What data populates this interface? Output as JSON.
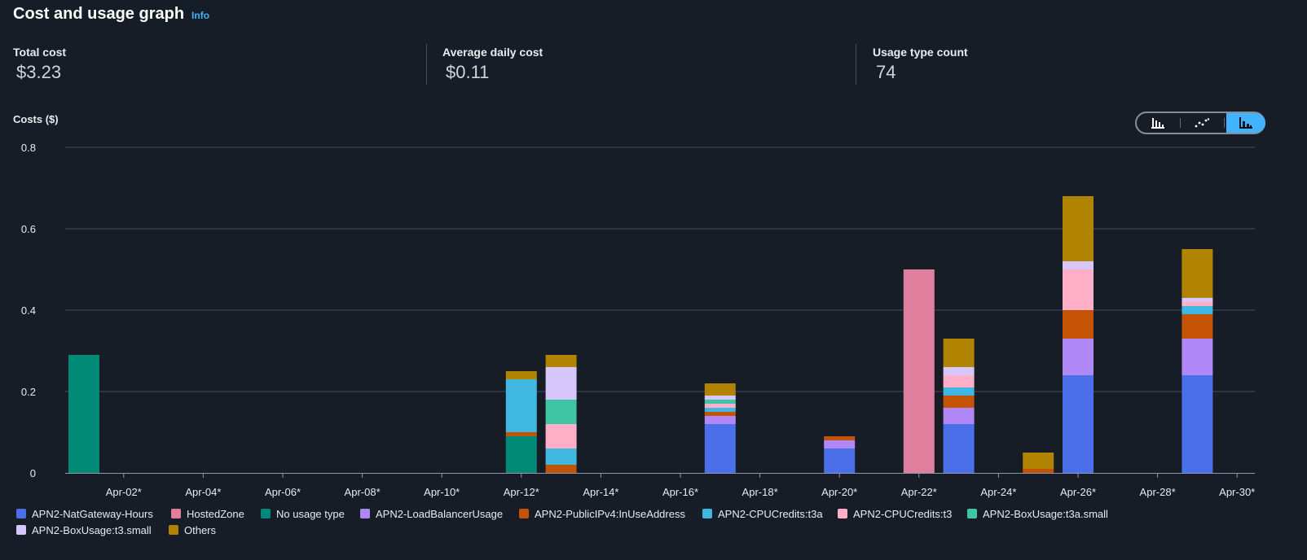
{
  "header": {
    "title": "Cost and usage graph",
    "info": "Info"
  },
  "stats": [
    {
      "label": "Total cost",
      "value": "$3.23"
    },
    {
      "label": "Average daily cost",
      "value": "$0.11"
    },
    {
      "label": "Usage type count",
      "value": "74"
    }
  ],
  "toggle": {
    "options": [
      "bar-chart-icon",
      "line-chart-icon",
      "stacked-bar-chart-icon"
    ],
    "selected": "stacked-bar-chart-icon"
  },
  "chart_data": {
    "type": "bar",
    "stacked": true,
    "ylabel": "Costs ($)",
    "ylim": [
      0,
      0.8
    ],
    "yticks": [
      "0",
      "0.2",
      "0.4",
      "0.6",
      "0.8"
    ],
    "xtick_labels": [
      "Apr-02*",
      "Apr-04*",
      "Apr-06*",
      "Apr-08*",
      "Apr-10*",
      "Apr-12*",
      "Apr-14*",
      "Apr-16*",
      "Apr-18*",
      "Apr-20*",
      "Apr-22*",
      "Apr-24*",
      "Apr-26*",
      "Apr-28*",
      "Apr-30*"
    ],
    "categories": [
      "Apr-01*",
      "Apr-02*",
      "Apr-03*",
      "Apr-04*",
      "Apr-05*",
      "Apr-06*",
      "Apr-07*",
      "Apr-08*",
      "Apr-09*",
      "Apr-10*",
      "Apr-11*",
      "Apr-12*",
      "Apr-13*",
      "Apr-14*",
      "Apr-15*",
      "Apr-16*",
      "Apr-17*",
      "Apr-18*",
      "Apr-19*",
      "Apr-20*",
      "Apr-21*",
      "Apr-22*",
      "Apr-23*",
      "Apr-24*",
      "Apr-25*",
      "Apr-26*",
      "Apr-27*",
      "Apr-28*",
      "Apr-29*",
      "Apr-30*"
    ],
    "grid": true,
    "legend_position": "bottom",
    "series": [
      {
        "name": "APN2-NatGateway-Hours",
        "color": "#4a6fe8",
        "values": [
          0,
          0,
          0,
          0,
          0,
          0,
          0,
          0,
          0,
          0,
          0,
          0,
          0,
          0,
          0,
          0,
          0.12,
          0,
          0,
          0.06,
          0,
          0,
          0.12,
          0,
          0,
          0.24,
          0,
          0,
          0.24,
          0
        ]
      },
      {
        "name": "HostedZone",
        "color": "#e07f9d",
        "values": [
          0,
          0,
          0,
          0,
          0,
          0,
          0,
          0,
          0,
          0,
          0,
          0,
          0,
          0,
          0,
          0,
          0,
          0,
          0,
          0,
          0,
          0.5,
          0,
          0,
          0,
          0,
          0,
          0,
          0,
          0
        ]
      },
      {
        "name": "No usage type",
        "color": "#018977",
        "values": [
          0.29,
          0,
          0,
          0,
          0,
          0,
          0,
          0,
          0,
          0,
          0,
          0.09,
          0,
          0,
          0,
          0,
          0,
          0,
          0,
          0,
          0,
          0,
          0,
          0,
          0,
          0,
          0,
          0,
          0,
          0
        ]
      },
      {
        "name": "APN2-LoadBalancerUsage",
        "color": "#b088f5",
        "values": [
          0,
          0,
          0,
          0,
          0,
          0,
          0,
          0,
          0,
          0,
          0,
          0,
          0,
          0,
          0,
          0,
          0.02,
          0,
          0,
          0.02,
          0,
          0,
          0.04,
          0,
          0,
          0.09,
          0,
          0,
          0.09,
          0
        ]
      },
      {
        "name": "APN2-PublicIPv4:InUseAddress",
        "color": "#c55305",
        "values": [
          0,
          0,
          0,
          0,
          0,
          0,
          0,
          0,
          0,
          0,
          0,
          0.01,
          0.02,
          0,
          0,
          0,
          0.01,
          0,
          0,
          0.01,
          0,
          0,
          0.03,
          0,
          0.01,
          0.07,
          0,
          0,
          0.06,
          0
        ]
      },
      {
        "name": "APN2-CPUCredits:t3a",
        "color": "#3fb7e0",
        "values": [
          0,
          0,
          0,
          0,
          0,
          0,
          0,
          0,
          0,
          0,
          0,
          0.13,
          0.04,
          0,
          0,
          0,
          0.01,
          0,
          0,
          0,
          0,
          0,
          0.02,
          0,
          0,
          0,
          0,
          0,
          0.02,
          0
        ]
      },
      {
        "name": "APN2-CPUCredits:t3",
        "color": "#ffb0c8",
        "values": [
          0,
          0,
          0,
          0,
          0,
          0,
          0,
          0,
          0,
          0,
          0,
          0,
          0.06,
          0,
          0,
          0,
          0.01,
          0,
          0,
          0,
          0,
          0,
          0.03,
          0,
          0,
          0.1,
          0,
          0,
          0.01,
          0
        ]
      },
      {
        "name": "APN2-BoxUsage:t3a.small",
        "color": "#3fc4a4",
        "values": [
          0,
          0,
          0,
          0,
          0,
          0,
          0,
          0,
          0,
          0,
          0,
          0,
          0.06,
          0,
          0,
          0,
          0.01,
          0,
          0,
          0,
          0,
          0,
          0,
          0,
          0,
          0,
          0,
          0,
          0,
          0
        ]
      },
      {
        "name": "APN2-BoxUsage:t3.small",
        "color": "#d6c6fb",
        "values": [
          0,
          0,
          0,
          0,
          0,
          0,
          0,
          0,
          0,
          0,
          0,
          0,
          0.08,
          0,
          0,
          0,
          0.01,
          0,
          0,
          0,
          0,
          0,
          0.02,
          0,
          0,
          0.02,
          0,
          0,
          0.01,
          0
        ]
      },
      {
        "name": "Others",
        "color": "#b08400",
        "values": [
          0,
          0,
          0,
          0,
          0,
          0,
          0,
          0,
          0,
          0,
          0,
          0.02,
          0.03,
          0,
          0,
          0,
          0.03,
          0,
          0,
          0,
          0,
          0,
          0.07,
          0,
          0.04,
          0.16,
          0,
          0,
          0.12,
          0
        ]
      }
    ]
  }
}
